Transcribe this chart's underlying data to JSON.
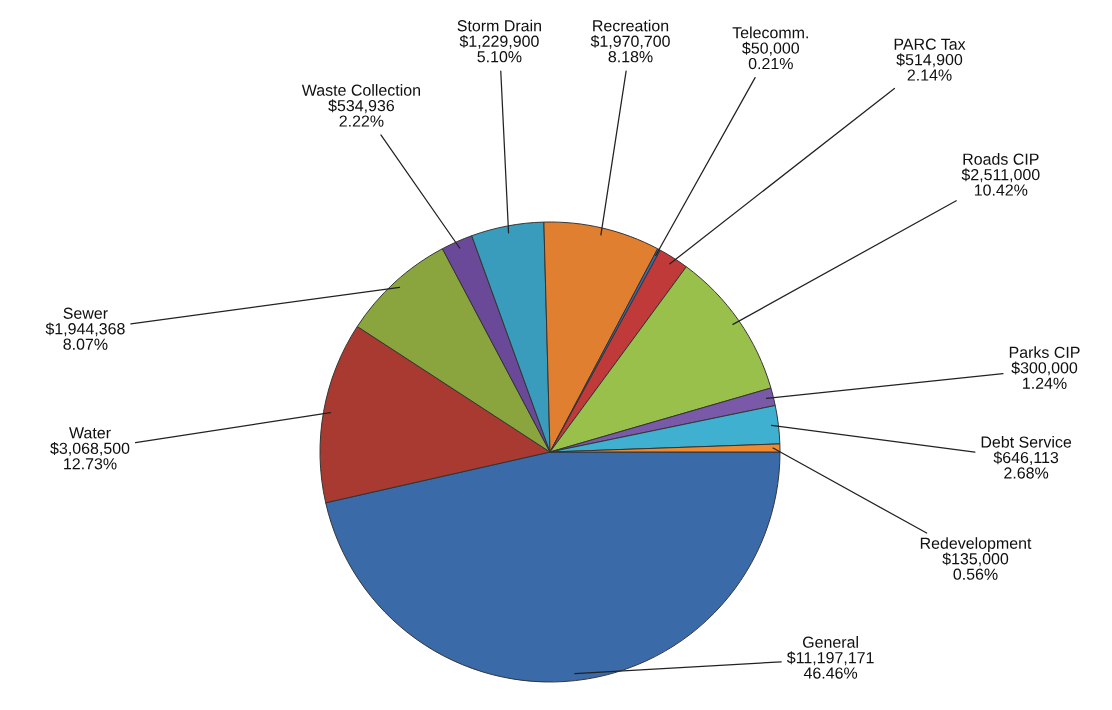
{
  "chart_data": {
    "type": "pie",
    "categories": [
      "General",
      "Water",
      "Sewer",
      "Waste Collection",
      "Storm Drain",
      "Recreation",
      "Telecomm.",
      "PARC Tax",
      "Roads CIP",
      "Parks CIP",
      "Debt Service",
      "Redevelopment"
    ],
    "values": [
      11197171,
      3068500,
      1944368,
      534936,
      1229900,
      1970700,
      50000,
      514900,
      2511000,
      300000,
      646113,
      135000
    ],
    "value_labels": [
      "$11,197,171\n46.46%",
      "$3,068,500\n12.73%",
      "$1,944,368\n8.07%",
      "$534,936\n2.22%",
      "$1,229,900\n5.10%",
      "$1,970,700\n8.18%",
      "$50,000\n0.21%",
      "$514,900\n2.14%",
      "$2,511,000\n10.42%",
      "$300,000\n1.24%",
      "$646,113\n2.68%",
      "$135,000\n0.56%"
    ],
    "colors": [
      "#3a6aa8",
      "#a83a32",
      "#8aa53e",
      "#6a4a98",
      "#3a9cbc",
      "#e07f30",
      "#3a6aa8",
      "#c03a3a",
      "#98c04a",
      "#7a5aa8",
      "#40b0d0",
      "#f08a30"
    ],
    "legend": false
  }
}
